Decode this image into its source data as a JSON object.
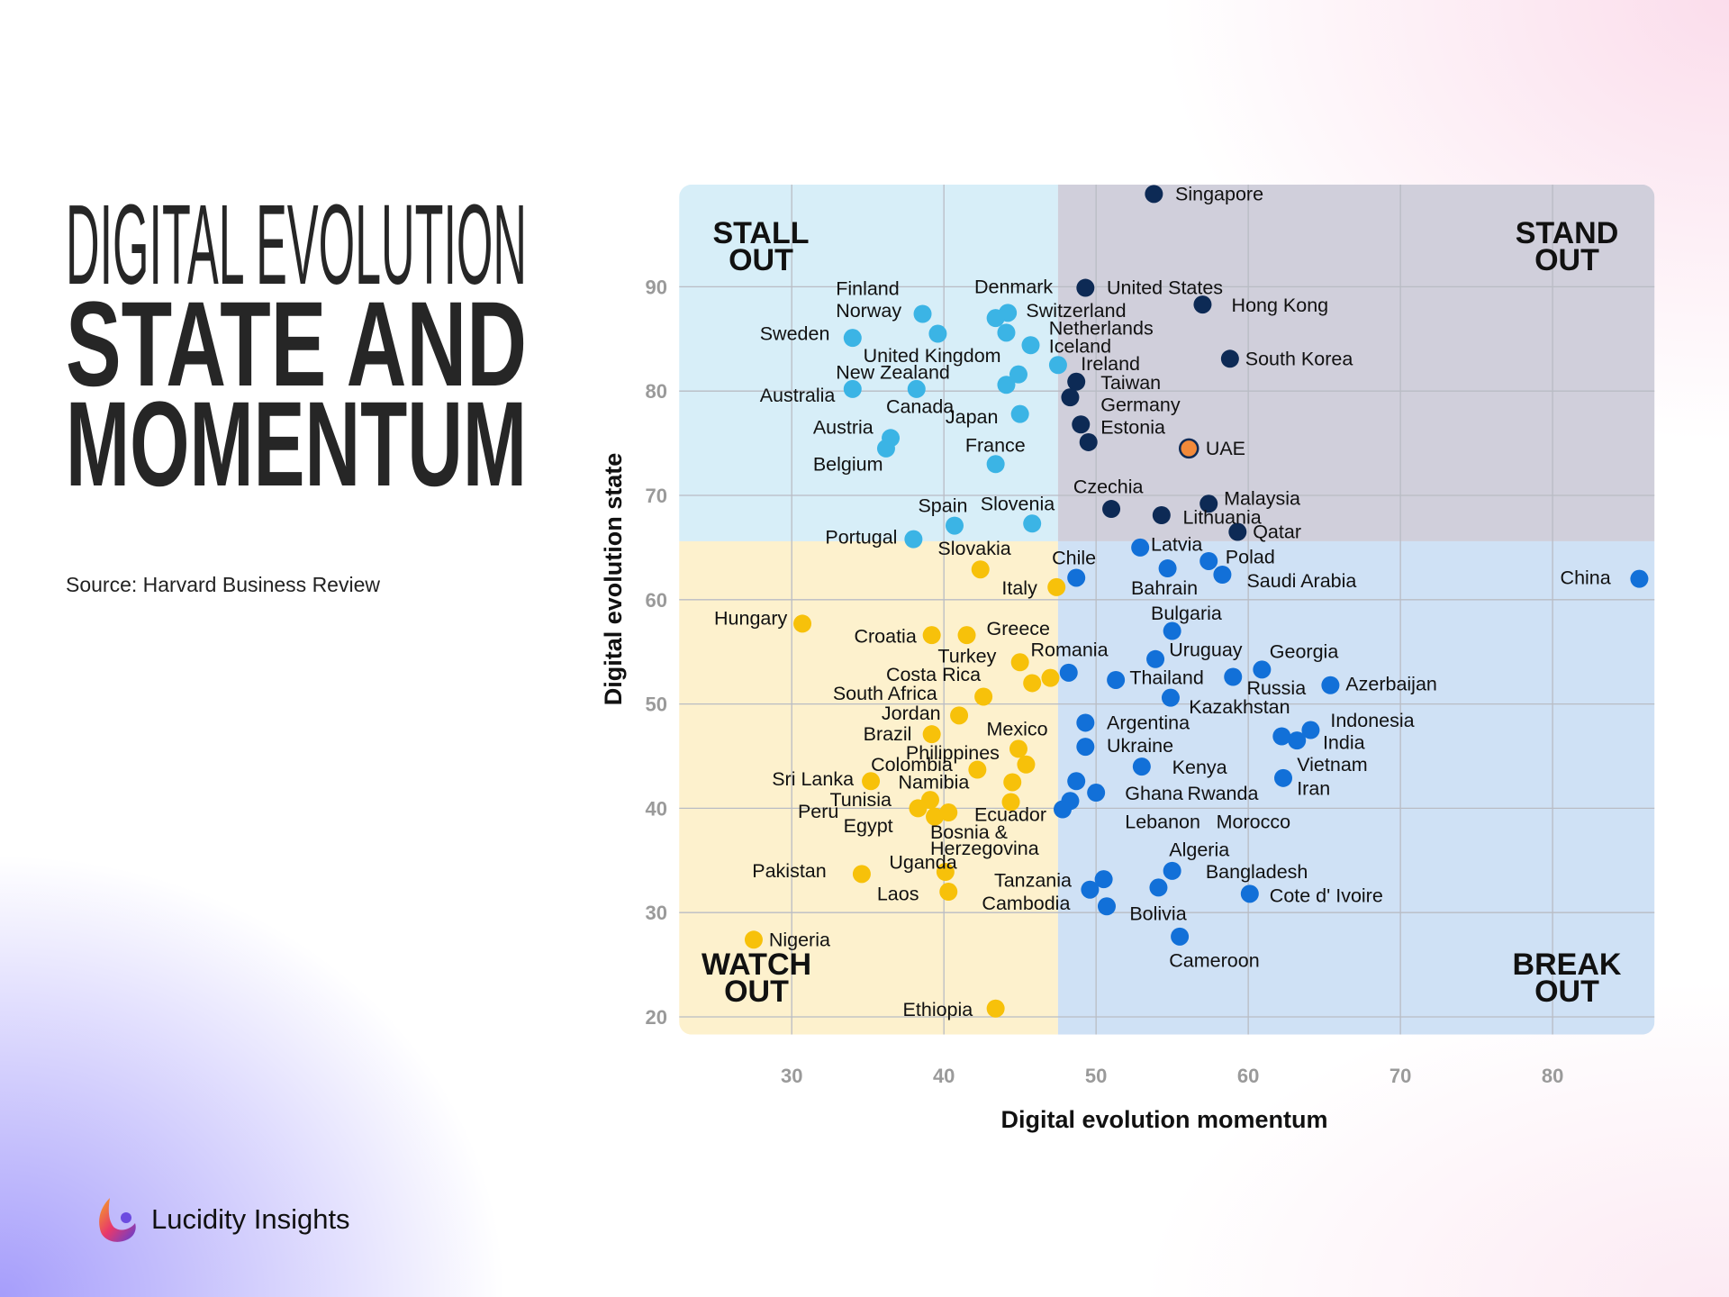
{
  "title": {
    "line1": "DIGITAL EVOLUTION",
    "line2": "STATE AND",
    "line3": "MOMENTUM"
  },
  "source": "Source: Harvard Business Review",
  "brand": {
    "name": "Lucidity Insights",
    "icon": "lucidity-logo-icon"
  },
  "colors": {
    "stall_out": "#3bb4e5",
    "stand_out": "#0d2a55",
    "watch_out": "#f7c10a",
    "break_out": "#1270d8",
    "highlight": "#f28a3a",
    "stall_bg": "#d7eef8",
    "stand_bg": "#d0cfdb",
    "watch_bg": "#fdf1cd",
    "break_bg": "#cfe1f5"
  },
  "chart_data": {
    "type": "scatter",
    "xlabel": "Digital evolution momentum",
    "ylabel": "Digital evolution state",
    "xlim": [
      22.6,
      86.7
    ],
    "ylim": [
      18.3,
      99.8
    ],
    "xticks": [
      30,
      40,
      50,
      60,
      70,
      80
    ],
    "yticks": [
      20,
      30,
      40,
      50,
      60,
      70,
      80,
      90
    ],
    "grid": true,
    "quadrant_split": {
      "x": 47.5,
      "y": 65.6
    },
    "quadrants": [
      {
        "key": "stall_out",
        "lines": [
          "STALL",
          "OUT"
        ],
        "position": "top-left"
      },
      {
        "key": "stand_out",
        "lines": [
          "STAND",
          "OUT"
        ],
        "position": "top-right"
      },
      {
        "key": "watch_out",
        "lines": [
          "WATCH",
          "OUT"
        ],
        "position": "bottom-left"
      },
      {
        "key": "break_out",
        "lines": [
          "BREAK",
          "OUT"
        ],
        "position": "bottom-right"
      }
    ],
    "points": [
      {
        "label": "Singapore",
        "g": "stand_out",
        "x": 53.8,
        "y": 98.9,
        "lx": 55.2,
        "ly": 98.9
      },
      {
        "label": "United States",
        "g": "stand_out",
        "x": 49.3,
        "y": 89.9,
        "lx": 50.7,
        "ly": 89.9
      },
      {
        "label": "Hong Kong",
        "g": "stand_out",
        "x": 57.0,
        "y": 88.3,
        "lx": 58.9,
        "ly": 88.2
      },
      {
        "label": "South Korea",
        "g": "stand_out",
        "x": 58.8,
        "y": 83.1,
        "lx": 59.8,
        "ly": 83.1
      },
      {
        "label": "Taiwan",
        "g": "stand_out",
        "x": 48.7,
        "y": 80.9,
        "lx": 50.3,
        "ly": 80.8
      },
      {
        "label": "Germany",
        "g": "stand_out",
        "x": 48.3,
        "y": 79.4,
        "lx": 50.3,
        "ly": 78.7
      },
      {
        "label": "Estonia",
        "g": "stand_out",
        "x": 49.0,
        "y": 76.8,
        "lx": 50.3,
        "ly": 76.5
      },
      {
        "label": "",
        "g": "stand_out",
        "x": 49.5,
        "y": 75.1
      },
      {
        "label": "UAE",
        "g": "highlight",
        "x": 56.1,
        "y": 74.5,
        "lx": 57.2,
        "ly": 74.5
      },
      {
        "label": "Czechia",
        "g": "stand_out",
        "x": 51.0,
        "y": 68.7,
        "lx": 48.5,
        "ly": 70.8
      },
      {
        "label": "Lithuania",
        "g": "stand_out",
        "x": 54.3,
        "y": 68.1,
        "lx": 55.7,
        "ly": 67.9
      },
      {
        "label": "Malaysia",
        "g": "stand_out",
        "x": 57.4,
        "y": 69.2,
        "lx": 58.4,
        "ly": 69.7
      },
      {
        "label": "Qatar",
        "g": "stand_out",
        "x": 59.3,
        "y": 66.5,
        "lx": 60.3,
        "ly": 66.5
      },
      {
        "label": "Finland",
        "g": "stall_out",
        "x": 38.6,
        "y": 87.4,
        "lx": 32.9,
        "ly": 89.8
      },
      {
        "label": "Norway",
        "g": "stall_out",
        "x": 39.6,
        "y": 85.5,
        "lx": 32.9,
        "ly": 87.7
      },
      {
        "label": "Sweden",
        "g": "stall_out",
        "x": 34.0,
        "y": 85.1,
        "lx": 27.9,
        "ly": 85.5
      },
      {
        "label": "Denmark",
        "g": "stall_out",
        "x": 43.4,
        "y": 87.0,
        "lx": 42.0,
        "ly": 90.0
      },
      {
        "label": "Switzerland",
        "g": "stall_out",
        "x": 44.2,
        "y": 87.5,
        "lx": 45.4,
        "ly": 87.7
      },
      {
        "label": "Netherlands",
        "g": "stall_out",
        "x": 44.1,
        "y": 85.6,
        "lx": 46.9,
        "ly": 86.0
      },
      {
        "label": "Iceland",
        "g": "stall_out",
        "x": 45.7,
        "y": 84.4,
        "lx": 46.9,
        "ly": 84.3
      },
      {
        "label": "Ireland",
        "g": "stall_out",
        "x": 47.5,
        "y": 82.5,
        "lx": 49.0,
        "ly": 82.6
      },
      {
        "label": "United Kingdom",
        "g": "stall_out",
        "x": 44.9,
        "y": 81.6,
        "lx": 34.7,
        "ly": 83.4
      },
      {
        "label": "Canada",
        "g": "stall_out",
        "x": 44.1,
        "y": 80.6,
        "lx": 36.2,
        "ly": 78.5
      },
      {
        "label": "New Zealand",
        "g": "stall_out",
        "x": 38.2,
        "y": 80.2,
        "lx": 32.9,
        "ly": 81.8
      },
      {
        "label": "Australia",
        "g": "stall_out",
        "x": 34.0,
        "y": 80.2,
        "lx": 27.9,
        "ly": 79.6
      },
      {
        "label": "Japan",
        "g": "stall_out",
        "x": 45.0,
        "y": 77.8,
        "lx": 40.1,
        "ly": 77.5
      },
      {
        "label": "Austria",
        "g": "stall_out",
        "x": 36.5,
        "y": 75.5,
        "lx": 31.4,
        "ly": 76.5
      },
      {
        "label": "Belgium",
        "g": "stall_out",
        "x": 36.2,
        "y": 74.5,
        "lx": 31.4,
        "ly": 73.0
      },
      {
        "label": "France",
        "g": "stall_out",
        "x": 43.4,
        "y": 73.0,
        "lx": 41.4,
        "ly": 74.8
      },
      {
        "label": "Spain",
        "g": "stall_out",
        "x": 40.7,
        "y": 67.1,
        "lx": 38.3,
        "ly": 69.0
      },
      {
        "label": "Slovenia",
        "g": "stall_out",
        "x": 45.8,
        "y": 67.3,
        "lx": 42.4,
        "ly": 69.2
      },
      {
        "label": "Portugal",
        "g": "stall_out",
        "x": 38.0,
        "y": 65.8,
        "lx": 32.2,
        "ly": 66.0
      },
      {
        "label": "Slovakia",
        "g": "watch_out",
        "x": 42.4,
        "y": 62.9,
        "lx": 39.6,
        "ly": 64.9
      },
      {
        "label": "Italy",
        "g": "watch_out",
        "x": 47.4,
        "y": 61.2,
        "lx": 43.8,
        "ly": 61.1
      },
      {
        "label": "Hungary",
        "g": "watch_out",
        "x": 30.7,
        "y": 57.7,
        "lx": 24.9,
        "ly": 58.2
      },
      {
        "label": "Croatia",
        "g": "watch_out",
        "x": 39.2,
        "y": 56.6,
        "lx": 34.1,
        "ly": 56.5
      },
      {
        "label": "Greece",
        "g": "watch_out",
        "x": 41.5,
        "y": 56.6,
        "lx": 42.8,
        "ly": 57.2
      },
      {
        "label": "Turkey",
        "g": "watch_out",
        "x": 45.0,
        "y": 54.0,
        "lx": 39.6,
        "ly": 54.6
      },
      {
        "label": "Costa Rica",
        "g": "watch_out",
        "x": 45.8,
        "y": 52.0,
        "lx": 36.2,
        "ly": 52.8
      },
      {
        "label": "Romania",
        "g": "watch_out",
        "x": 47.0,
        "y": 52.5,
        "lx": 45.7,
        "ly": 55.2
      },
      {
        "label": "South Africa",
        "g": "watch_out",
        "x": 42.6,
        "y": 50.7,
        "lx": 32.7,
        "ly": 51.0
      },
      {
        "label": "Jordan",
        "g": "watch_out",
        "x": 41.0,
        "y": 48.9,
        "lx": 35.9,
        "ly": 49.1
      },
      {
        "label": "Brazil",
        "g": "watch_out",
        "x": 39.2,
        "y": 47.1,
        "lx": 34.7,
        "ly": 47.1
      },
      {
        "label": "Mexico",
        "g": "watch_out",
        "x": 44.9,
        "y": 45.7,
        "lx": 42.8,
        "ly": 47.6
      },
      {
        "label": "Philippines",
        "g": "watch_out",
        "x": 45.4,
        "y": 44.2,
        "lx": 37.5,
        "ly": 45.3
      },
      {
        "label": "Colombia",
        "g": "watch_out",
        "x": 42.2,
        "y": 43.7,
        "lx": 35.2,
        "ly": 44.2
      },
      {
        "label": "Namibia",
        "g": "watch_out",
        "x": 44.5,
        "y": 42.5,
        "lx": 37.0,
        "ly": 42.5
      },
      {
        "label": "Sri Lanka",
        "g": "watch_out",
        "x": 35.2,
        "y": 42.6,
        "lx": 28.7,
        "ly": 42.8
      },
      {
        "label": "Ecuador",
        "g": "watch_out",
        "x": 44.4,
        "y": 40.6,
        "lx": 42.0,
        "ly": 39.4
      },
      {
        "label": "Tunisia",
        "g": "watch_out",
        "x": 39.1,
        "y": 40.8,
        "lx": 32.5,
        "ly": 40.8
      },
      {
        "label": "Peru",
        "g": "watch_out",
        "x": 38.3,
        "y": 40.0,
        "lx": 30.4,
        "ly": 39.7
      },
      {
        "label": "Egypt",
        "g": "watch_out",
        "x": 39.4,
        "y": 39.2,
        "lx": 33.4,
        "ly": 38.3
      },
      {
        "label": "Bosnia & Herzegovina",
        "lines": [
          "Bosnia &",
          "Herzegovina"
        ],
        "g": "watch_out",
        "x": 40.3,
        "y": 39.6,
        "lx": 39.1,
        "ly": 37.7
      },
      {
        "label": "Uganda",
        "g": "watch_out",
        "x": 40.1,
        "y": 33.9,
        "lx": 36.4,
        "ly": 34.8
      },
      {
        "label": "Pakistan",
        "g": "watch_out",
        "x": 34.6,
        "y": 33.7,
        "lx": 27.4,
        "ly": 34.0
      },
      {
        "label": "Laos",
        "g": "watch_out",
        "x": 40.3,
        "y": 32.0,
        "lx": 35.6,
        "ly": 31.8
      },
      {
        "label": "Nigeria",
        "g": "watch_out",
        "x": 27.5,
        "y": 27.4,
        "lx": 28.5,
        "ly": 27.4
      },
      {
        "label": "Ethiopia",
        "g": "watch_out",
        "x": 43.4,
        "y": 20.8,
        "lx": 37.3,
        "ly": 20.7
      },
      {
        "label": "Latvia",
        "g": "break_out",
        "x": 52.9,
        "y": 65.0,
        "lx": 53.6,
        "ly": 65.3
      },
      {
        "label": "Chile",
        "g": "break_out",
        "x": 48.7,
        "y": 62.1,
        "lx": 47.1,
        "ly": 64.0
      },
      {
        "label": "Bahrain",
        "g": "break_out",
        "x": 54.7,
        "y": 63.0,
        "lx": 52.3,
        "ly": 61.1
      },
      {
        "label": "Polad",
        "g": "break_out",
        "x": 57.4,
        "y": 63.7,
        "lx": 58.5,
        "ly": 64.1
      },
      {
        "label": "Saudi Arabia",
        "g": "break_out",
        "x": 58.3,
        "y": 62.4,
        "lx": 59.9,
        "ly": 61.8
      },
      {
        "label": "China",
        "g": "break_out",
        "x": 85.7,
        "y": 62.0,
        "lx": 80.5,
        "ly": 62.1
      },
      {
        "label": "Bulgaria",
        "g": "break_out",
        "x": 55.0,
        "y": 57.0,
        "lx": 53.6,
        "ly": 58.7
      },
      {
        "label": "Uruguay",
        "g": "break_out",
        "x": 53.9,
        "y": 54.3,
        "lx": 54.8,
        "ly": 55.2
      },
      {
        "label": "Georgia",
        "g": "break_out",
        "x": 60.9,
        "y": 53.3,
        "lx": 61.4,
        "ly": 55.0
      },
      {
        "label": "Russia",
        "g": "break_out",
        "x": 59.0,
        "y": 52.6,
        "lx": 59.9,
        "ly": 51.5
      },
      {
        "label": "Thailand",
        "g": "break_out",
        "x": 51.3,
        "y": 52.3,
        "lx": 52.2,
        "ly": 52.5
      },
      {
        "label": "",
        "g": "break_out",
        "x": 48.2,
        "y": 53.0
      },
      {
        "label": "Kazakhstan",
        "g": "break_out",
        "x": 54.9,
        "y": 50.6,
        "lx": 56.1,
        "ly": 49.7
      },
      {
        "label": "Azerbaijan",
        "g": "break_out",
        "x": 65.4,
        "y": 51.8,
        "lx": 66.4,
        "ly": 51.9
      },
      {
        "label": "Argentina",
        "g": "break_out",
        "x": 49.3,
        "y": 48.2,
        "lx": 50.7,
        "ly": 48.2
      },
      {
        "label": "Ukraine",
        "g": "break_out",
        "x": 49.3,
        "y": 45.9,
        "lx": 50.7,
        "ly": 46.0
      },
      {
        "label": "Indonesia",
        "g": "break_out",
        "x": 64.1,
        "y": 47.5,
        "lx": 65.4,
        "ly": 48.4
      },
      {
        "label": "India",
        "g": "break_out",
        "x": 63.2,
        "y": 46.5,
        "lx": 64.9,
        "ly": 46.3
      },
      {
        "label": "Vietnam",
        "g": "break_out",
        "x": 62.2,
        "y": 46.9,
        "lx": 63.2,
        "ly": 44.2
      },
      {
        "label": "Iran",
        "g": "break_out",
        "x": 62.3,
        "y": 42.9,
        "lx": 63.2,
        "ly": 41.9
      },
      {
        "label": "Kenya",
        "g": "break_out",
        "x": 53.0,
        "y": 44.0,
        "lx": 55.0,
        "ly": 43.9
      },
      {
        "label": "Ghana",
        "g": "break_out",
        "x": 48.7,
        "y": 42.6,
        "lx": 51.9,
        "ly": 41.4
      },
      {
        "label": "Rwanda",
        "g": "break_out",
        "x": 50.0,
        "y": 41.5,
        "lx": 56.0,
        "ly": 41.4
      },
      {
        "label": "Lebanon",
        "g": "break_out",
        "x": 48.3,
        "y": 40.7,
        "lx": 51.9,
        "ly": 38.7
      },
      {
        "label": "Morocco",
        "g": "break_out",
        "x": 47.8,
        "y": 39.9,
        "lx": 57.9,
        "ly": 38.7
      },
      {
        "label": "Algeria",
        "g": "break_out",
        "x": 55.0,
        "y": 34.0,
        "lx": 54.8,
        "ly": 36.0
      },
      {
        "label": "Bangladesh",
        "g": "break_out",
        "x": 54.1,
        "y": 32.4,
        "lx": 57.2,
        "ly": 33.9
      },
      {
        "label": "Cote d' Ivoire",
        "g": "break_out",
        "x": 60.1,
        "y": 31.8,
        "lx": 61.4,
        "ly": 31.6
      },
      {
        "label": "Tanzania",
        "g": "break_out",
        "x": 50.5,
        "y": 33.2,
        "lx": 43.3,
        "ly": 33.1
      },
      {
        "label": "Cambodia",
        "g": "break_out",
        "x": 49.6,
        "y": 32.2,
        "lx": 42.5,
        "ly": 30.9
      },
      {
        "label": "Bolivia",
        "g": "break_out",
        "x": 50.7,
        "y": 30.6,
        "lx": 52.2,
        "ly": 29.9
      },
      {
        "label": "Cameroon",
        "g": "break_out",
        "x": 55.5,
        "y": 27.7,
        "lx": 54.8,
        "ly": 25.4
      }
    ]
  }
}
